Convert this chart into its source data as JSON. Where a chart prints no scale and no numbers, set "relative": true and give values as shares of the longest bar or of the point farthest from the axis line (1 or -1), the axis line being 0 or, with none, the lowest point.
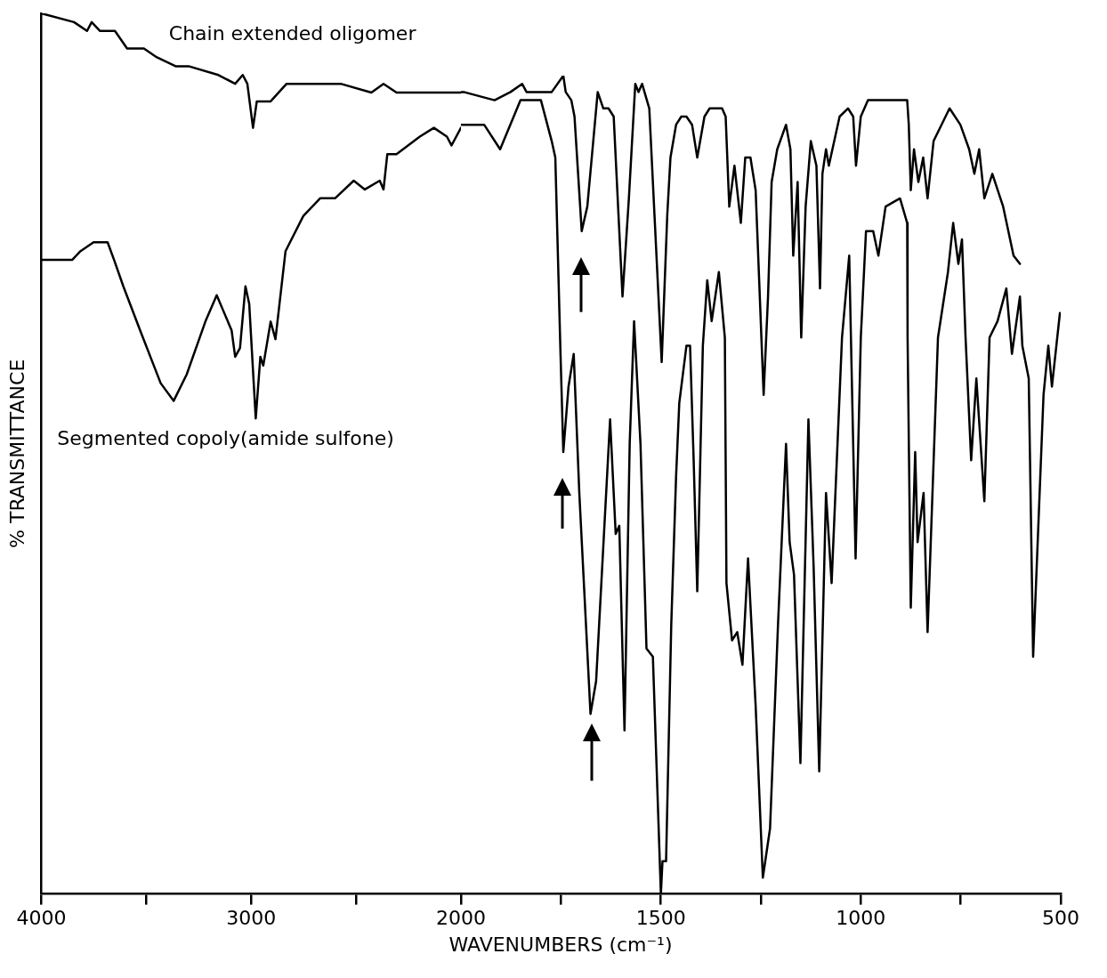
{
  "chart_data": [
    {
      "type": "line",
      "relative": true,
      "ylabel": "% TRANSMITTANCE",
      "xlim": [
        4000,
        2000
      ],
      "xticks": [
        4000,
        {
          "value": 3500,
          "label": null
        },
        3000,
        {
          "value": 2500,
          "label": null
        }
      ],
      "series": [
        {
          "name": "Chain extended oligomer",
          "color": "#000000",
          "x": [
            4000,
            3844,
            3782,
            3760,
            3720,
            3649,
            3591,
            3511,
            3449,
            3360,
            3298,
            3156,
            3076,
            3040,
            3018,
            2991,
            2973,
            2907,
            2831,
            2764,
            2671,
            2573,
            2427,
            2369,
            2307,
            2240,
            2053,
            2000
          ],
          "values": [
            1.0,
            0.99,
            0.98,
            0.99,
            0.98,
            0.98,
            0.96,
            0.96,
            0.95,
            0.94,
            0.94,
            0.93,
            0.92,
            0.93,
            0.92,
            0.87,
            0.9,
            0.9,
            0.92,
            0.92,
            0.92,
            0.92,
            0.91,
            0.92,
            0.91,
            0.91,
            0.91,
            0.91
          ]
        },
        {
          "name": "Segmented copoly(amide sulfone)",
          "color": "#000000",
          "x": [
            3996,
            3893,
            3853,
            3813,
            3751,
            3684,
            3653,
            3609,
            3529,
            3431,
            3369,
            3307,
            3218,
            3164,
            3093,
            3076,
            3053,
            3027,
            3009,
            2978,
            2956,
            2942,
            2907,
            2884,
            2836,
            2751,
            2671,
            2600,
            2511,
            2458,
            2387,
            2369,
            2351,
            2307,
            2196,
            2129,
            2067,
            2045,
            2000
          ],
          "values": [
            0.72,
            0.72,
            0.72,
            0.73,
            0.74,
            0.74,
            0.72,
            0.69,
            0.64,
            0.58,
            0.56,
            0.59,
            0.65,
            0.68,
            0.64,
            0.61,
            0.62,
            0.69,
            0.67,
            0.54,
            0.61,
            0.6,
            0.65,
            0.63,
            0.73,
            0.77,
            0.79,
            0.79,
            0.81,
            0.8,
            0.81,
            0.8,
            0.84,
            0.84,
            0.86,
            0.87,
            0.86,
            0.85,
            0.87
          ]
        }
      ]
    },
    {
      "type": "line",
      "relative": true,
      "xlabel": "WAVENUMBERS (cm⁻¹)",
      "xlim": [
        2000,
        500
      ],
      "xticks": [
        2000,
        {
          "value": 1750,
          "label": null
        },
        1500,
        {
          "value": 1250,
          "label": null
        },
        1000,
        {
          "value": 750,
          "label": null
        },
        500
      ],
      "series": [
        {
          "color": "#000000",
          "x": [
            2000,
            1993,
            1916,
            1876,
            1847,
            1836,
            1796,
            1773,
            1744,
            1738,
            1724,
            1716,
            1707,
            1698,
            1684,
            1671,
            1658,
            1644,
            1631,
            1618,
            1596,
            1580,
            1564,
            1556,
            1547,
            1529,
            1516,
            1507,
            1498,
            1484,
            1476,
            1462,
            1449,
            1436,
            1422,
            1409,
            1391,
            1378,
            1347,
            1338,
            1329,
            1316,
            1300,
            1289,
            1276,
            1263,
            1243,
            1232,
            1223,
            1209,
            1187,
            1176,
            1169,
            1158,
            1149,
            1138,
            1125,
            1111,
            1102,
            1096,
            1087,
            1080,
            1053,
            1032,
            1019,
            1012,
            1000,
            982,
            929,
            884,
            880,
            875,
            867,
            856,
            844,
            833,
            818,
            778,
            751,
            729,
            716,
            704,
            691,
            671,
            644,
            618,
            602
          ],
          "values": [
            0.98,
            0.98,
            0.97,
            0.98,
            0.99,
            0.98,
            0.98,
            0.98,
            1.0,
            0.98,
            0.97,
            0.95,
            0.88,
            0.81,
            0.84,
            0.91,
            0.98,
            0.96,
            0.96,
            0.95,
            0.73,
            0.85,
            0.99,
            0.98,
            0.99,
            0.96,
            0.83,
            0.74,
            0.65,
            0.83,
            0.9,
            0.94,
            0.95,
            0.95,
            0.94,
            0.9,
            0.95,
            0.96,
            0.96,
            0.95,
            0.84,
            0.89,
            0.82,
            0.9,
            0.9,
            0.86,
            0.61,
            0.73,
            0.87,
            0.91,
            0.94,
            0.91,
            0.78,
            0.87,
            0.68,
            0.84,
            0.92,
            0.89,
            0.74,
            0.88,
            0.91,
            0.89,
            0.95,
            0.96,
            0.95,
            0.89,
            0.95,
            0.97,
            0.97,
            0.97,
            0.94,
            0.86,
            0.91,
            0.87,
            0.9,
            0.85,
            0.92,
            0.96,
            0.94,
            0.91,
            0.88,
            0.91,
            0.85,
            0.88,
            0.84,
            0.78,
            0.77
          ]
        },
        {
          "color": "#000000",
          "x": [
            2000,
            1993,
            1942,
            1902,
            1851,
            1822,
            1800,
            1773,
            1764,
            1751,
            1744,
            1731,
            1718,
            1704,
            1676,
            1662,
            1627,
            1613,
            1604,
            1591,
            1578,
            1567,
            1551,
            1536,
            1520,
            1500,
            1496,
            1487,
            1474,
            1462,
            1454,
            1436,
            1427,
            1418,
            1409,
            1395,
            1384,
            1373,
            1355,
            1340,
            1336,
            1322,
            1309,
            1296,
            1282,
            1263,
            1245,
            1227,
            1207,
            1187,
            1178,
            1167,
            1151,
            1131,
            1118,
            1104,
            1087,
            1073,
            1047,
            1029,
            1013,
            1000,
            987,
            969,
            956,
            938,
            902,
            884,
            883,
            875,
            864,
            858,
            843,
            833,
            807,
            782,
            769,
            756,
            747,
            738,
            724,
            711,
            691,
            678,
            658,
            636,
            622,
            602,
            596,
            580,
            569,
            543,
            531,
            522,
            502
          ],
          "values": [
            0.94,
            0.94,
            0.94,
            0.91,
            0.97,
            0.97,
            0.97,
            0.92,
            0.9,
            0.66,
            0.54,
            0.62,
            0.66,
            0.49,
            0.22,
            0.26,
            0.58,
            0.44,
            0.45,
            0.2,
            0.55,
            0.7,
            0.55,
            0.3,
            0.29,
            0.0,
            0.04,
            0.04,
            0.33,
            0.51,
            0.6,
            0.67,
            0.67,
            0.53,
            0.37,
            0.67,
            0.75,
            0.7,
            0.76,
            0.68,
            0.38,
            0.31,
            0.32,
            0.28,
            0.41,
            0.23,
            0.02,
            0.08,
            0.33,
            0.55,
            0.43,
            0.39,
            0.16,
            0.58,
            0.4,
            0.15,
            0.49,
            0.38,
            0.68,
            0.78,
            0.41,
            0.68,
            0.81,
            0.81,
            0.78,
            0.84,
            0.85,
            0.82,
            0.68,
            0.35,
            0.54,
            0.43,
            0.49,
            0.32,
            0.68,
            0.76,
            0.82,
            0.77,
            0.8,
            0.68,
            0.53,
            0.63,
            0.48,
            0.68,
            0.7,
            0.74,
            0.66,
            0.73,
            0.67,
            0.63,
            0.29,
            0.61,
            0.67,
            0.62,
            0.71
          ]
        }
      ]
    }
  ]
}
